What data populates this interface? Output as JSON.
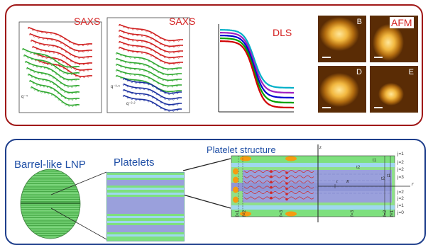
{
  "top": {
    "saxs1_label": "SAXS",
    "saxs2_label": "SAXS",
    "dls_label": "DLS",
    "afm_label": "AFM",
    "saxs1_slope": "q⁻⁴",
    "saxs2_slope_a": "q⁻³·⁵",
    "saxs2_slope_b": "q⁻²·²",
    "afm_letters": [
      "B",
      "",
      "D",
      "E"
    ]
  },
  "bottom": {
    "barrel_label": "Barrel-like LNP",
    "platelets_label": "Platelets",
    "structure_label": "Platelet structure",
    "axis_z": "z",
    "axis_r": "r",
    "j_labels": [
      "j=1",
      "j=2",
      "j=2",
      "j=3",
      "j=2",
      "j=2",
      "j=1",
      "j=0"
    ],
    "f_labels": [
      "f=1",
      "f=2",
      "f=3",
      "f=3",
      "f=2",
      "f=1"
    ],
    "t_labels": [
      "t1",
      "t2",
      "t2",
      "t1"
    ],
    "t_label": "t",
    "R_label": "R"
  },
  "colors": {
    "top_frame": "#a01818",
    "bottom_frame": "#1f3f8c",
    "saxs_red": "#d01e1e",
    "saxs_green": "#2fa82f",
    "saxs_blue": "#1a2fa0",
    "dls_lines": [
      "#00b0c8",
      "#a020c0",
      "#0000d0",
      "#00a000",
      "#d00000"
    ],
    "platelet_green": "#7ee07e",
    "platelet_cyan": "#9fd8ee",
    "platelet_purple": "#9aa0dc",
    "orange": "#f59c10"
  }
}
